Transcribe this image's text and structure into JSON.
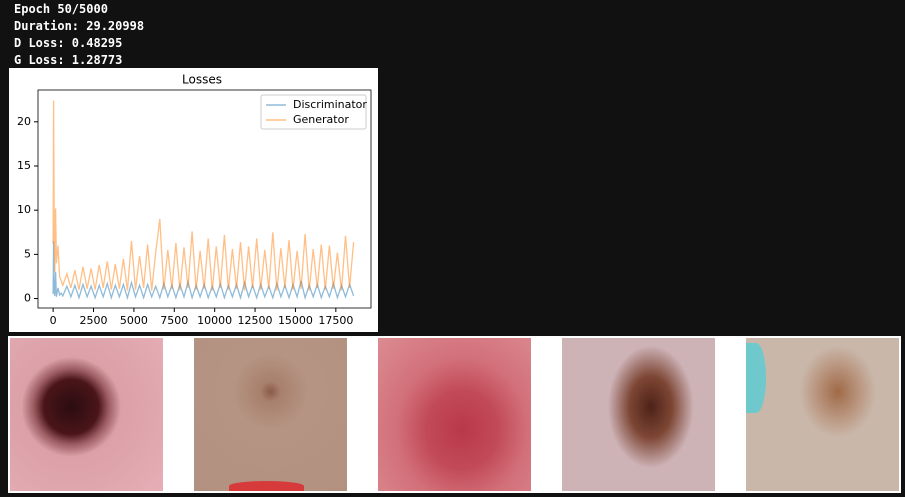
{
  "output_lines": [
    "Epoch 50/5000",
    "Duration: 29.20998",
    "D Loss: 0.48295",
    "G Loss: 1.28773"
  ],
  "chart_data": {
    "type": "line",
    "title": "Losses",
    "legend": "upper right",
    "alpha": 0.5,
    "x": [
      0,
      30,
      60,
      100,
      150,
      200,
      300,
      400,
      500,
      600,
      850,
      1100,
      1350,
      1600,
      1850,
      2100,
      2350,
      2600,
      2850,
      3100,
      3350,
      3600,
      3850,
      4100,
      4350,
      4600,
      4850,
      5100,
      5350,
      5600,
      5850,
      6100,
      6350,
      6600,
      6850,
      7100,
      7350,
      7600,
      7850,
      8100,
      8350,
      8600,
      8850,
      9100,
      9350,
      9600,
      9850,
      10100,
      10350,
      10600,
      10850,
      11100,
      11350,
      11600,
      11850,
      12100,
      12350,
      12600,
      12850,
      13100,
      13350,
      13600,
      13850,
      14100,
      14350,
      14600,
      14850,
      15100,
      15350,
      15600,
      15850,
      16100,
      16350,
      16600,
      16850,
      17100,
      17350,
      17600,
      17850,
      18100,
      18350,
      18600
    ],
    "series": [
      {
        "name": "Discriminator",
        "color": "#1f77b4",
        "values": [
          0.5,
          6.5,
          1.0,
          0.3,
          3.0,
          0.2,
          1.2,
          0.4,
          0.6,
          0.3,
          1.4,
          0.2,
          1.5,
          0.1,
          1.6,
          0.2,
          1.4,
          0.1,
          1.5,
          0.2,
          1.7,
          0.1,
          1.5,
          0.2,
          1.6,
          0.1,
          1.8,
          0.2,
          1.5,
          0.1,
          1.6,
          0.2,
          1.4,
          0.1,
          1.7,
          0.2,
          1.5,
          0.1,
          1.6,
          0.2,
          1.9,
          0.1,
          1.5,
          0.2,
          1.6,
          0.1,
          1.4,
          0.2,
          1.7,
          0.1,
          1.5,
          0.2,
          1.6,
          0.1,
          1.8,
          0.2,
          1.5,
          0.1,
          1.6,
          0.2,
          1.4,
          0.1,
          1.7,
          0.2,
          1.5,
          0.1,
          1.6,
          0.2,
          2.0,
          0.1,
          1.5,
          0.2,
          1.6,
          0.1,
          1.4,
          0.2,
          1.7,
          0.1,
          1.5,
          0.2,
          1.6,
          0.3
        ]
      },
      {
        "name": "Generator",
        "color": "#ff7f0e",
        "values": [
          6.2,
          22.4,
          10.5,
          3.0,
          10.2,
          4.0,
          6.0,
          2.5,
          2.0,
          1.5,
          2.8,
          1.2,
          3.2,
          1.0,
          3.6,
          1.1,
          3.4,
          1.0,
          3.8,
          1.2,
          4.2,
          1.0,
          3.9,
          1.1,
          4.5,
          0.9,
          6.5,
          1.0,
          4.8,
          1.2,
          6.1,
          0.9,
          5.2,
          9.0,
          1.0,
          5.5,
          1.1,
          6.3,
          0.9,
          5.8,
          1.2,
          7.6,
          1.0,
          5.4,
          1.1,
          6.8,
          0.9,
          5.9,
          1.2,
          7.2,
          1.0,
          5.6,
          1.1,
          6.4,
          0.9,
          5.9,
          1.2,
          6.8,
          1.0,
          5.5,
          1.1,
          7.5,
          0.9,
          5.7,
          1.2,
          6.6,
          1.0,
          5.4,
          1.1,
          7.3,
          0.9,
          5.6,
          1.2,
          6.1,
          1.0,
          6.0,
          1.1,
          5.2,
          0.9,
          7.1,
          1.2,
          6.4
        ]
      }
    ],
    "xlim": [
      -937,
      19677
    ],
    "ylim": [
      -1.07,
      23.6
    ],
    "xticks": [
      0,
      2500,
      5000,
      7500,
      10000,
      12500,
      15000,
      17500
    ],
    "yticks": [
      0,
      5,
      10,
      15,
      20
    ]
  }
}
